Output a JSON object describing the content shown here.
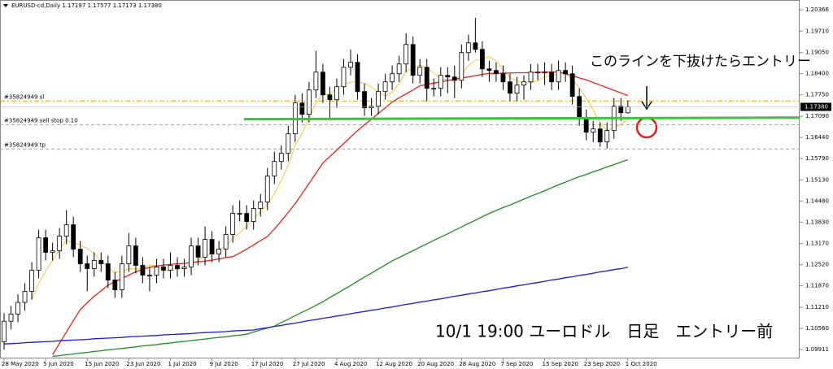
{
  "chart_data": {
    "type": "candlestick",
    "title": "EURUSD-cd,Daily  1.17197 1.17577 1.17173 1.17380",
    "categories": [
      "28 May 2020",
      null,
      null,
      null,
      null,
      null,
      "5 Jun 2020",
      null,
      null,
      null,
      null,
      null,
      "15 Jun 2020",
      null,
      null,
      null,
      null,
      null,
      "23 Jun 2020",
      null,
      null,
      null,
      null,
      null,
      "1 Jul 2020",
      null,
      null,
      null,
      null,
      null,
      "9 Jul 2020",
      null,
      null,
      null,
      null,
      null,
      "17 Jul 2020",
      null,
      null,
      null,
      null,
      null,
      "27 Jul 2020",
      null,
      null,
      null,
      null,
      null,
      "4 Aug 2020",
      null,
      null,
      null,
      null,
      null,
      "12 Aug 2020",
      null,
      null,
      null,
      null,
      null,
      "20 Aug 2020",
      null,
      null,
      null,
      null,
      null,
      "28 Aug 2020",
      null,
      null,
      null,
      null,
      null,
      "7 Sep 2020",
      null,
      null,
      null,
      null,
      null,
      "15 Sep 2020",
      null,
      null,
      null,
      null,
      null,
      "23 Sep 2020",
      null,
      null,
      null,
      null,
      null,
      "1 Oct 2020"
    ],
    "open": [
      1.1015,
      1.1078,
      1.11,
      1.1136,
      1.117,
      1.1235,
      1.1335,
      1.129,
      1.1295,
      1.134,
      1.1375,
      1.13,
      1.1255,
      1.124,
      1.1265,
      1.1255,
      1.1205,
      1.1175,
      1.1255,
      1.131,
      1.125,
      1.122,
      1.122,
      1.1245,
      1.1235,
      1.125,
      1.124,
      1.1245,
      1.131,
      1.1275,
      1.133,
      1.1285,
      1.13,
      1.1345,
      1.141,
      1.141,
      1.1385,
      1.1425,
      1.1445,
      1.1525,
      1.157,
      1.1595,
      1.1655,
      1.175,
      1.1715,
      1.179,
      1.1845,
      1.1775,
      1.176,
      1.18,
      1.186,
      1.1875,
      1.1785,
      1.1735,
      1.174,
      1.1785,
      1.1815,
      1.184,
      1.187,
      1.193,
      1.1835,
      1.186,
      1.1795,
      1.1795,
      1.1835,
      1.183,
      1.182,
      1.1905,
      1.1935,
      1.1915,
      1.1855,
      1.185,
      1.184,
      1.1815,
      1.178,
      1.1805,
      1.1815,
      1.1845,
      1.1845,
      1.1845,
      1.1815,
      1.185,
      1.184,
      1.177,
      1.1705,
      1.166,
      1.167,
      1.163,
      1.1665,
      1.174,
      1.17197
    ],
    "high": [
      1.1103,
      1.1125,
      1.1161,
      1.1195,
      1.126,
      1.136,
      1.136,
      1.132,
      1.1365,
      1.142,
      1.14,
      1.1325,
      1.128,
      1.129,
      1.129,
      1.128,
      1.123,
      1.128,
      1.135,
      1.1335,
      1.1275,
      1.1245,
      1.127,
      1.127,
      1.129,
      1.1275,
      1.127,
      1.1335,
      1.1335,
      1.137,
      1.1355,
      1.1325,
      1.137,
      1.1435,
      1.145,
      1.1435,
      1.145,
      1.147,
      1.155,
      1.16,
      1.162,
      1.168,
      1.1775,
      1.178,
      1.1815,
      1.191,
      1.187,
      1.18,
      1.1825,
      1.1885,
      1.1915,
      1.19,
      1.181,
      1.1765,
      1.181,
      1.184,
      1.1865,
      1.1895,
      1.1965,
      1.1955,
      1.1885,
      1.1885,
      1.1825,
      1.186,
      1.186,
      1.1865,
      1.193,
      1.196,
      1.2012,
      1.194,
      1.188,
      1.1875,
      1.1865,
      1.184,
      1.183,
      1.1835,
      1.187,
      1.187,
      1.1875,
      1.187,
      1.188,
      1.1875,
      1.1865,
      1.1795,
      1.173,
      1.1695,
      1.169,
      1.169,
      1.1765,
      1.1765,
      1.17577
    ],
    "low": [
      1.099,
      1.1053,
      1.1075,
      1.1111,
      1.1145,
      1.121,
      1.1265,
      1.1265,
      1.127,
      1.1315,
      1.1275,
      1.123,
      1.117,
      1.1215,
      1.123,
      1.118,
      1.115,
      1.115,
      1.123,
      1.1225,
      1.1195,
      1.117,
      1.1195,
      1.121,
      1.121,
      1.1215,
      1.1215,
      1.122,
      1.125,
      1.125,
      1.126,
      1.126,
      1.1275,
      1.132,
      1.1385,
      1.136,
      1.136,
      1.14,
      1.142,
      1.15,
      1.1545,
      1.157,
      1.163,
      1.169,
      1.169,
      1.1765,
      1.175,
      1.17,
      1.1735,
      1.1775,
      1.1835,
      1.176,
      1.171,
      1.171,
      1.1715,
      1.176,
      1.179,
      1.1815,
      1.1845,
      1.181,
      1.181,
      1.1755,
      1.177,
      1.177,
      1.178,
      1.1765,
      1.1795,
      1.188,
      1.1905,
      1.183,
      1.1815,
      1.1815,
      1.179,
      1.1755,
      1.1755,
      1.176,
      1.179,
      1.182,
      1.1805,
      1.179,
      1.179,
      1.1815,
      1.1745,
      1.168,
      1.1635,
      1.163,
      1.1615,
      1.161,
      1.164,
      1.1695,
      1.17173
    ],
    "close": [
      1.1078,
      1.11,
      1.1136,
      1.117,
      1.1235,
      1.1335,
      1.129,
      1.1295,
      1.134,
      1.1375,
      1.13,
      1.1255,
      1.124,
      1.1265,
      1.1255,
      1.1205,
      1.1175,
      1.1255,
      1.131,
      1.125,
      1.122,
      1.122,
      1.1245,
      1.1235,
      1.125,
      1.124,
      1.1245,
      1.131,
      1.1275,
      1.133,
      1.1285,
      1.13,
      1.1345,
      1.141,
      1.141,
      1.1385,
      1.1425,
      1.1445,
      1.1525,
      1.157,
      1.1595,
      1.1655,
      1.175,
      1.1715,
      1.179,
      1.1845,
      1.1775,
      1.176,
      1.18,
      1.186,
      1.1875,
      1.1785,
      1.1735,
      1.174,
      1.1785,
      1.1815,
      1.184,
      1.187,
      1.193,
      1.1835,
      1.186,
      1.1795,
      1.1795,
      1.1835,
      1.183,
      1.182,
      1.1905,
      1.1935,
      1.1915,
      1.1855,
      1.185,
      1.184,
      1.1815,
      1.178,
      1.1805,
      1.1815,
      1.1845,
      1.1845,
      1.1845,
      1.1815,
      1.185,
      1.184,
      1.177,
      1.1705,
      1.166,
      1.167,
      1.163,
      1.1665,
      1.174,
      1.172,
      1.1738
    ],
    "overlays": [
      {
        "color": "#f5c542",
        "values": [
          null,
          null,
          null,
          null,
          1.1144,
          1.1195,
          1.1233,
          1.1265,
          1.1299,
          1.1327,
          1.132,
          1.1313,
          1.1302,
          1.1287,
          1.1263,
          1.1244,
          1.1228,
          1.1231,
          1.124,
          1.1239,
          1.1242,
          1.1251,
          1.1249,
          1.1234,
          1.1234,
          1.1238,
          1.1243,
          1.1256,
          1.1264,
          1.128,
          1.1289,
          1.13,
          1.1307,
          1.1334,
          1.135,
          1.137,
          1.1395,
          1.1415,
          1.1438,
          1.147,
          1.1512,
          1.1558,
          1.1619,
          1.1657,
          1.1701,
          1.1751,
          1.1775,
          1.1777,
          1.1794,
          1.1808,
          1.1814,
          1.1816,
          1.1811,
          1.1799,
          1.1784,
          1.1772,
          1.1783,
          1.181,
          1.1848,
          1.1858,
          1.1867,
          1.1858,
          1.1843,
          1.1824,
          1.1823,
          1.1815,
          1.1837,
          1.1865,
          1.1881,
          1.1886,
          1.1892,
          1.1879,
          1.1855,
          1.1828,
          1.1818,
          1.1811,
          1.1812,
          1.1818,
          1.1831,
          1.1833,
          1.184,
          1.1839,
          1.1824,
          1.1796,
          1.1765,
          1.1729,
          1.1687,
          1.1666,
          1.1673,
          1.1685,
          1.1699
        ]
      },
      {
        "color": "#e8231a",
        "values": [
          null,
          null,
          null,
          null,
          null,
          null,
          null,
          1.0975,
          1.101,
          1.1045,
          1.108,
          1.1114,
          1.1135,
          1.1155,
          1.1172,
          1.1189,
          1.12,
          1.121,
          1.122,
          1.123,
          1.1238,
          1.1244,
          1.1248,
          1.1251,
          1.1253,
          1.1255,
          1.1256,
          1.1259,
          1.1261,
          1.1263,
          1.1266,
          1.127,
          1.1274,
          1.1277,
          1.1288,
          1.13,
          1.1313,
          1.1326,
          1.1339,
          1.1362,
          1.1387,
          1.1413,
          1.144,
          1.1471,
          1.1502,
          1.1534,
          1.1565,
          1.1585,
          1.1605,
          1.1625,
          1.1645,
          1.1665,
          1.1683,
          1.17,
          1.1718,
          1.1735,
          1.1753,
          1.1766,
          1.1778,
          1.179,
          1.1803,
          1.1807,
          1.1811,
          1.1815,
          1.1819,
          1.1823,
          1.1827,
          1.183,
          1.1834,
          1.1838,
          1.1841,
          1.1841,
          1.1842,
          1.1842,
          1.1843,
          1.1843,
          1.1844,
          1.1844,
          1.1845,
          1.1845,
          1.1846,
          1.184,
          1.1834,
          1.1827,
          1.1821,
          1.1813,
          1.1805,
          1.1797,
          1.1789,
          1.1781,
          1.1773
        ]
      },
      {
        "color": "#1e8c1e",
        "values": [
          null,
          null,
          null,
          null,
          null,
          null,
          null,
          1.097,
          1.0972,
          1.0975,
          1.0977,
          1.098,
          1.0982,
          1.0985,
          1.0987,
          1.099,
          1.0992,
          1.0994,
          1.0997,
          1.0999,
          1.1002,
          1.1004,
          1.1006,
          1.1009,
          1.1011,
          1.1014,
          1.1016,
          1.1018,
          1.1021,
          1.1023,
          1.1026,
          1.1028,
          1.103,
          1.1033,
          1.1035,
          1.1038,
          1.1045,
          1.1051,
          1.1057,
          1.1063,
          1.1074,
          1.1084,
          1.1095,
          1.1106,
          1.1116,
          1.1127,
          1.1138,
          1.1151,
          1.1163,
          1.1176,
          1.1188,
          1.1201,
          1.1214,
          1.1226,
          1.1239,
          1.1251,
          1.1264,
          1.1274,
          1.1285,
          1.1295,
          1.1306,
          1.1316,
          1.1327,
          1.1337,
          1.1347,
          1.1358,
          1.1368,
          1.1379,
          1.1389,
          1.14,
          1.141,
          1.1419,
          1.1428,
          1.1436,
          1.1445,
          1.1454,
          1.1463,
          1.1471,
          1.148,
          1.1489,
          1.1498,
          1.1506,
          1.1515,
          1.1523,
          1.153,
          1.1538,
          1.1545,
          1.1553,
          1.156,
          1.1568,
          1.1575
        ]
      },
      {
        "color": "#1a1adc",
        "values": [
          1.1008,
          1.1009,
          1.101,
          1.1012,
          1.1013,
          1.1014,
          1.1015,
          1.1016,
          1.1018,
          1.1019,
          1.102,
          1.1021,
          1.1022,
          1.1024,
          1.1025,
          1.1026,
          1.1027,
          1.1028,
          1.103,
          1.1031,
          1.1032,
          1.1033,
          1.1034,
          1.1036,
          1.1037,
          1.1038,
          1.1039,
          1.104,
          1.1042,
          1.1043,
          1.1044,
          1.1045,
          1.1046,
          1.1048,
          1.1049,
          1.105,
          1.1051,
          1.1055,
          1.1058,
          1.1062,
          1.1065,
          1.1069,
          1.1072,
          1.1076,
          1.108,
          1.1083,
          1.1087,
          1.109,
          1.1094,
          1.1097,
          1.1101,
          1.1105,
          1.1108,
          1.1112,
          1.1115,
          1.1119,
          1.1122,
          1.1126,
          1.113,
          1.1133,
          1.1137,
          1.114,
          1.1144,
          1.1147,
          1.1151,
          1.1155,
          1.1158,
          1.1162,
          1.1165,
          1.1169,
          1.1172,
          1.1176,
          1.118,
          1.1183,
          1.1187,
          1.119,
          1.1194,
          1.1197,
          1.1201,
          1.1205,
          1.1208,
          1.1212,
          1.1215,
          1.1219,
          1.1222,
          1.1226,
          1.123,
          1.1233,
          1.1237,
          1.124,
          1.1244
        ]
      }
    ],
    "levels": [
      {
        "name": "#35824949 sl",
        "value": 1.1756,
        "color": "#e8a000"
      },
      {
        "name": "#35824949 sell stop 0.10",
        "value": 1.1683,
        "color": "#b5c400"
      },
      {
        "name": "#35824949 tp",
        "value": 1.1608,
        "color": "#f08a78"
      }
    ],
    "trendline": {
      "color": "#2ecc2e",
      "values": [
        1.17,
        1.1705
      ]
    },
    "price_label": {
      "value": 1.1738,
      "label": "1.17380"
    },
    "ylim": [
      1.0966,
      1.2067
    ],
    "yticks": [
      1.20366,
      {
        "value": 1.1971,
        "label": "1.19710"
      },
      {
        "value": 1.1905,
        "label": "1.19050"
      },
      {
        "value": 1.184,
        "label": "1.18400"
      },
      {
        "value": 1.1775,
        "label": "1.17750"
      },
      {
        "value": 1.1709,
        "label": "1.17090"
      },
      {
        "value": 1.1644,
        "label": "1.16440"
      },
      {
        "value": 1.1579,
        "label": "1.15790"
      },
      {
        "value": 1.1513,
        "label": "1.15130"
      },
      {
        "value": 1.1448,
        "label": "1.14480"
      },
      {
        "value": 1.1383,
        "label": "1.13830"
      },
      {
        "value": 1.1317,
        "label": "1.13170"
      },
      {
        "value": 1.1252,
        "label": "1.12520"
      },
      {
        "value": 1.1187,
        "label": "1.11870"
      },
      {
        "value": 1.1121,
        "label": "1.11210"
      },
      {
        "value": 1.1056,
        "label": "1.10560"
      },
      1.09911
    ],
    "annotations": [
      "このラインを下抜けたらエントリー",
      "10/1 19:00 ユーロドル　日足　エントリー前"
    ]
  }
}
